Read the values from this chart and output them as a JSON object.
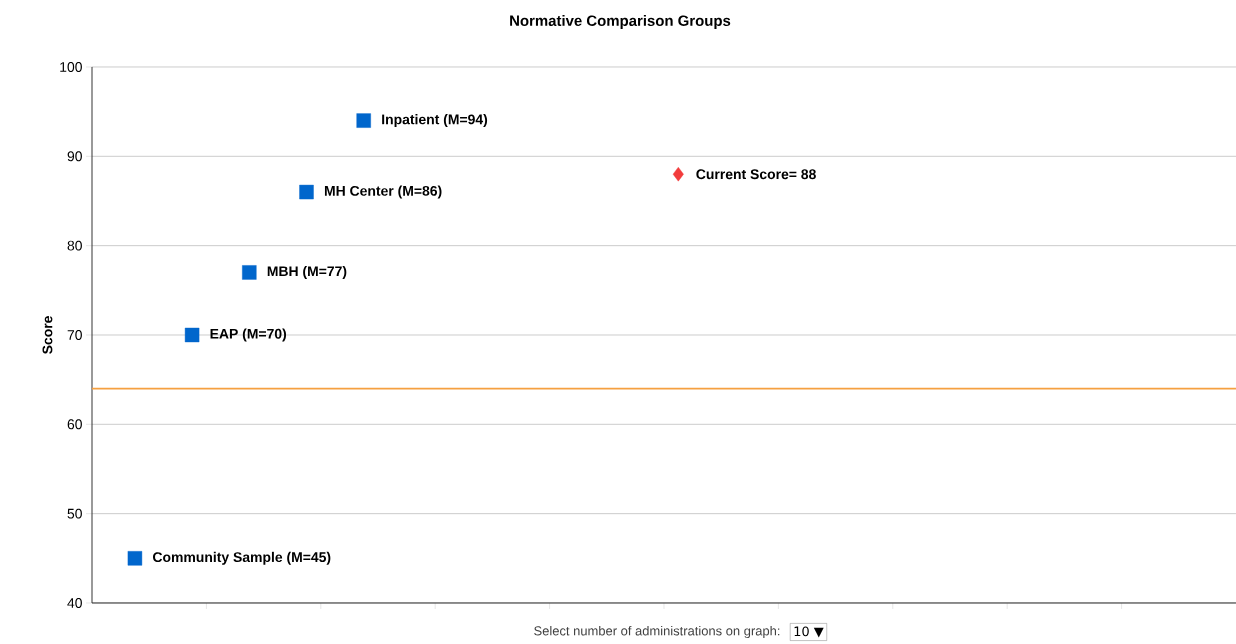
{
  "chart_data": {
    "type": "scatter",
    "title": "Normative Comparison Groups",
    "ylabel": "Score",
    "categories": [
      null,
      null,
      null,
      null,
      null,
      null,
      null,
      null,
      null,
      null,
      null,
      null,
      null,
      null,
      null,
      null,
      null,
      null,
      null,
      null,
      null,
      null,
      null,
      null,
      null,
      null,
      null,
      null,
      null,
      null,
      null,
      null,
      null,
      null,
      null,
      null,
      null,
      null,
      null,
      null
    ],
    "series": [
      {
        "name": "Community Sample (M=45)",
        "color": "#0066cc",
        "marker": "square",
        "values": [
          null,
          45,
          null,
          null,
          null,
          null,
          null,
          null,
          null,
          null,
          null,
          null,
          null,
          null,
          null,
          null,
          null,
          null,
          null,
          null,
          null,
          null,
          null,
          null,
          null,
          null,
          null,
          null,
          null,
          null,
          null,
          null,
          null,
          null,
          null,
          null,
          null,
          null,
          null,
          null
        ]
      },
      {
        "name": "EAP (M=70)",
        "color": "#0066cc",
        "marker": "square",
        "values": [
          null,
          null,
          null,
          70,
          null,
          null,
          null,
          null,
          null,
          null,
          null,
          null,
          null,
          null,
          null,
          null,
          null,
          null,
          null,
          null,
          null,
          null,
          null,
          null,
          null,
          null,
          null,
          null,
          null,
          null,
          null,
          null,
          null,
          null,
          null,
          null,
          null,
          null,
          null,
          null
        ]
      },
      {
        "name": "MBH (M=77)",
        "color": "#0066cc",
        "marker": "square",
        "values": [
          null,
          null,
          null,
          null,
          null,
          77,
          null,
          null,
          null,
          null,
          null,
          null,
          null,
          null,
          null,
          null,
          null,
          null,
          null,
          null,
          null,
          null,
          null,
          null,
          null,
          null,
          null,
          null,
          null,
          null,
          null,
          null,
          null,
          null,
          null,
          null,
          null,
          null,
          null,
          null
        ]
      },
      {
        "name": "MH Center (M=86)",
        "color": "#0066cc",
        "marker": "square",
        "values": [
          null,
          null,
          null,
          null,
          null,
          null,
          null,
          86,
          null,
          null,
          null,
          null,
          null,
          null,
          null,
          null,
          null,
          null,
          null,
          null,
          null,
          null,
          null,
          null,
          null,
          null,
          null,
          null,
          null,
          null,
          null,
          null,
          null,
          null,
          null,
          null,
          null,
          null,
          null,
          null
        ]
      },
      {
        "name": "Inpatient (M=94)",
        "color": "#0066cc",
        "marker": "square",
        "values": [
          null,
          null,
          null,
          null,
          null,
          null,
          null,
          null,
          null,
          94,
          null,
          null,
          null,
          null,
          null,
          null,
          null,
          null,
          null,
          null,
          null,
          null,
          null,
          null,
          null,
          null,
          null,
          null,
          null,
          null,
          null,
          null,
          null,
          null,
          null,
          null,
          null,
          null,
          null,
          null
        ]
      },
      {
        "name": "Current Score= 88",
        "color": "#f23c3c",
        "marker": "diamond",
        "values": [
          null,
          null,
          null,
          null,
          null,
          null,
          null,
          null,
          null,
          null,
          null,
          null,
          null,
          null,
          null,
          null,
          null,
          null,
          null,
          null,
          88,
          null,
          null,
          null,
          null,
          null,
          null,
          null,
          null,
          null,
          null,
          null,
          null,
          null,
          null,
          null,
          null,
          null,
          null,
          null
        ]
      }
    ],
    "ylim": [
      40,
      100
    ],
    "yticks": [
      40,
      50,
      60,
      70,
      80,
      90,
      100
    ],
    "tick_labels": "y",
    "grid": "y",
    "ref_lines": [
      {
        "axis": "y",
        "value": 64,
        "color": "#f5a040"
      }
    ],
    "annotations": [
      "Select number of administrations on graph:",
      "10 ▼"
    ]
  }
}
